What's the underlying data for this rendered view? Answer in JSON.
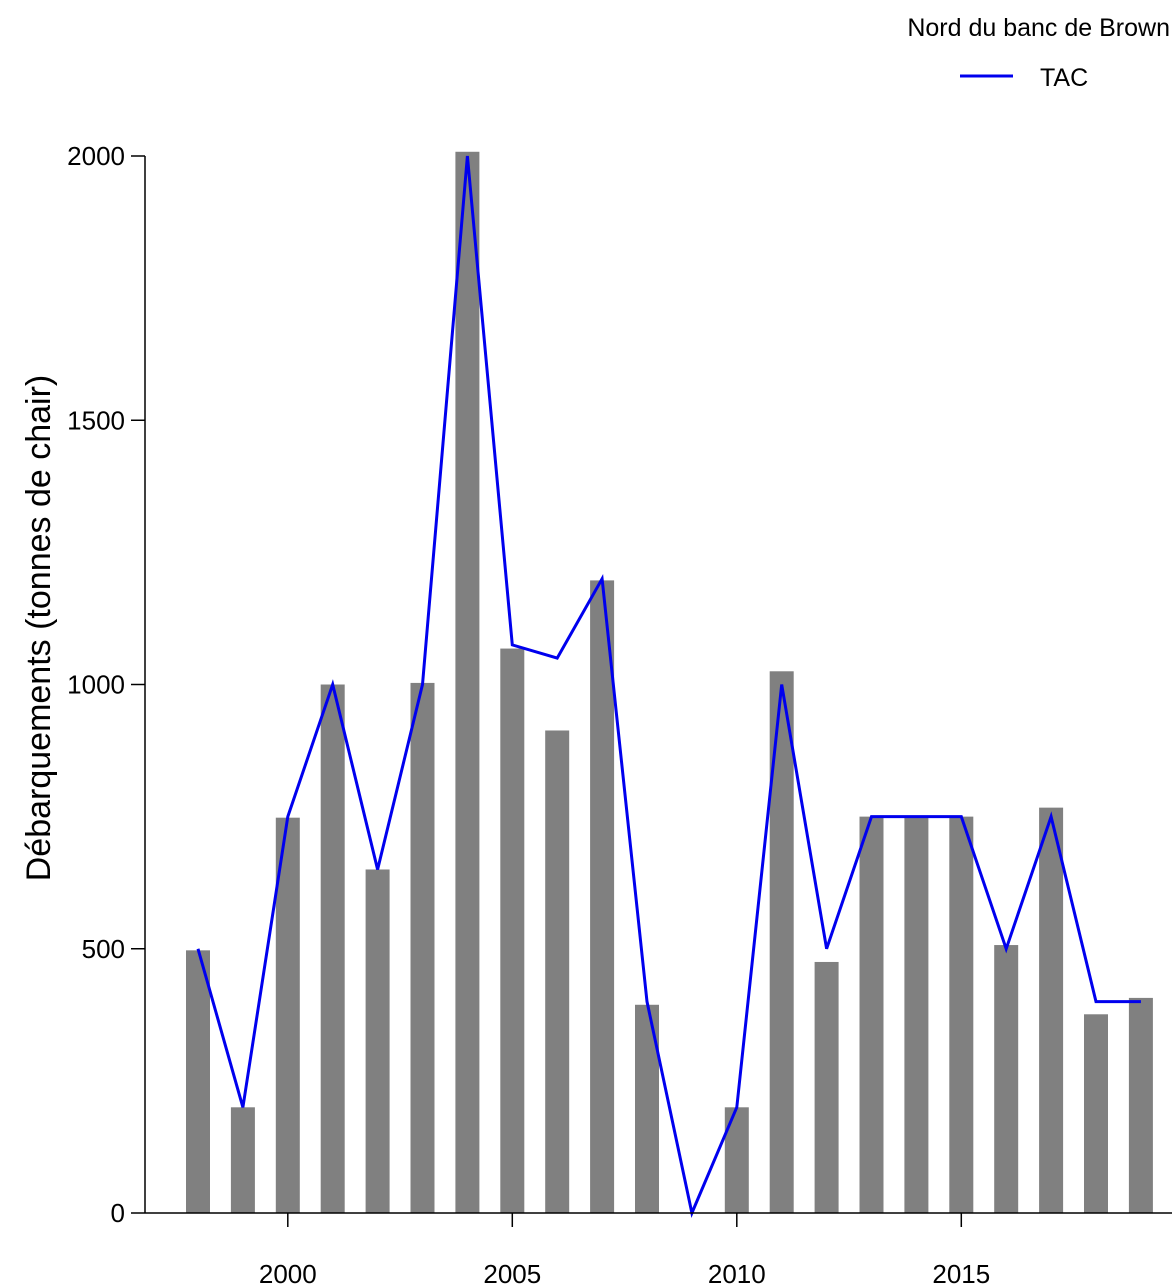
{
  "chart_data": {
    "type": "bar",
    "title": "",
    "xlabel": "",
    "ylabel": "Débarquements (tonnes de chair)",
    "ylim": [
      0,
      2000
    ],
    "yticks": [
      0,
      500,
      1000,
      1500,
      2000
    ],
    "xticks": [
      2000,
      2005,
      2010,
      2015
    ],
    "grid": false,
    "legend": {
      "title": "Nord du banc de Brown",
      "placement": "top-right",
      "entries": [
        "TAC"
      ]
    },
    "colors": {
      "bars": "#808080",
      "tac_line": "#0000ee"
    },
    "x": [
      1998,
      1999,
      2000,
      2001,
      2002,
      2003,
      2004,
      2005,
      2006,
      2007,
      2008,
      2009,
      2010,
      2011,
      2012,
      2013,
      2014,
      2015,
      2016,
      2017,
      2018,
      2019
    ],
    "series": [
      {
        "kind": "bar",
        "values": [
          497,
          200,
          748,
          1000,
          650,
          1003,
          2008,
          1068,
          913,
          1197,
          394,
          0,
          200,
          1025,
          475,
          750,
          750,
          750,
          507,
          767,
          376,
          407
        ]
      },
      {
        "name": "TAC",
        "kind": "line",
        "values": [
          500,
          200,
          750,
          1000,
          650,
          1000,
          2000,
          1075,
          1050,
          1200,
          400,
          0,
          200,
          1000,
          500,
          750,
          750,
          750,
          500,
          750,
          400,
          400
        ]
      }
    ]
  }
}
